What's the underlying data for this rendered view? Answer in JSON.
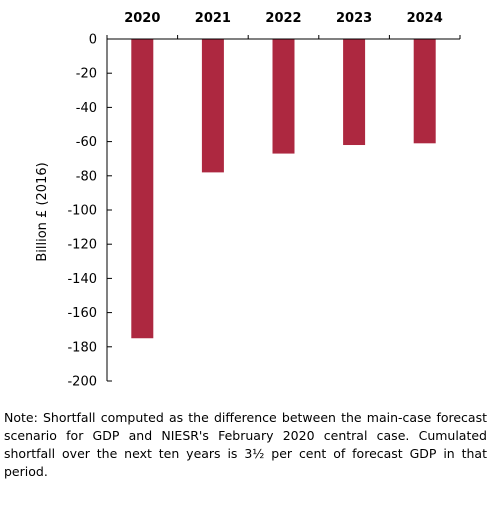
{
  "chart_data": {
    "type": "bar",
    "categories": [
      "2020",
      "2021",
      "2022",
      "2023",
      "2024"
    ],
    "values": [
      -175,
      -78,
      -67,
      -62,
      -61
    ],
    "ylabel": "Billion £ (2016)",
    "ylim": [
      -200,
      0
    ],
    "yticks": [
      0,
      -20,
      -40,
      -60,
      -80,
      -100,
      -120,
      -140,
      -160,
      -180,
      -200
    ],
    "category_axis_position": "top",
    "grid": false,
    "bar_color": "#ad2840"
  },
  "note": "Note: Shortfall computed as the difference between the main-case forecast scenario for GDP and NIESR's February 2020 central case. Cumulated shortfall over the next ten years is 3½ per cent of forecast GDP in that period."
}
